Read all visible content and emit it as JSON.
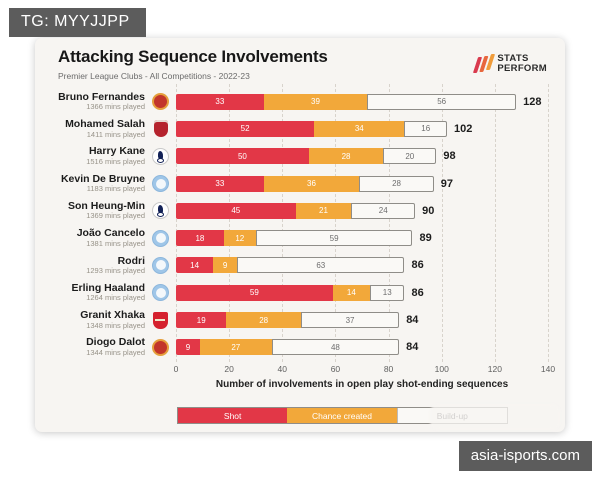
{
  "watermarks": {
    "top_left": "TG: MYYJJPP",
    "bottom_right": "asia-isports.com"
  },
  "header": {
    "title": "Attacking Sequence Involvements",
    "subtitle": "Premier League Clubs - All Competitions - 2022-23",
    "logo": {
      "line1": "STATS",
      "line2": "PERFORM"
    }
  },
  "colors": {
    "shot": "#e23747",
    "chance_created": "#f2a83a",
    "build_up": "#faf9f6",
    "card_background": "#f7f5f2"
  },
  "chart_data": {
    "type": "bar",
    "stacked": true,
    "orientation": "horizontal",
    "title": "Attacking Sequence Involvements",
    "subtitle": "Premier League Clubs - All Competitions - 2022-23",
    "xlabel": "Number of involvements in open play shot-ending sequences",
    "xlim": [
      0,
      140
    ],
    "x_ticks": [
      0,
      20,
      40,
      60,
      80,
      100,
      120,
      140
    ],
    "grid": "dashed-vertical",
    "legend": {
      "position": "bottom",
      "entries": [
        {
          "label": "Shot",
          "color": "#e23747"
        },
        {
          "label": "Chance created",
          "color": "#f2a83a"
        },
        {
          "label": "Build-up",
          "color": "#faf9f6"
        }
      ]
    },
    "series_keys": [
      "shot",
      "chance_created",
      "build_up"
    ],
    "players": [
      {
        "name": "Bruno Fernandes",
        "mins": "1366 mins played",
        "club": "manchester-united",
        "shot": 33,
        "chance_created": 39,
        "build_up": 56,
        "total": 128
      },
      {
        "name": "Mohamed Salah",
        "mins": "1411 mins played",
        "club": "liverpool",
        "shot": 52,
        "chance_created": 34,
        "build_up": 16,
        "total": 102
      },
      {
        "name": "Harry Kane",
        "mins": "1516 mins played",
        "club": "tottenham",
        "shot": 50,
        "chance_created": 28,
        "build_up": 20,
        "total": 98
      },
      {
        "name": "Kevin De Bruyne",
        "mins": "1183 mins played",
        "club": "manchester-city",
        "shot": 33,
        "chance_created": 36,
        "build_up": 28,
        "total": 97
      },
      {
        "name": "Son Heung-Min",
        "mins": "1369 mins played",
        "club": "tottenham",
        "shot": 45,
        "chance_created": 21,
        "build_up": 24,
        "total": 90
      },
      {
        "name": "João Cancelo",
        "mins": "1381 mins played",
        "club": "manchester-city",
        "shot": 18,
        "chance_created": 12,
        "build_up": 59,
        "total": 89
      },
      {
        "name": "Rodri",
        "mins": "1293 mins played",
        "club": "manchester-city",
        "shot": 14,
        "chance_created": 9,
        "build_up": 63,
        "total": 86
      },
      {
        "name": "Erling Haaland",
        "mins": "1264 mins played",
        "club": "manchester-city",
        "shot": 59,
        "chance_created": 14,
        "build_up": 13,
        "total": 86
      },
      {
        "name": "Granit Xhaka",
        "mins": "1348 mins played",
        "club": "arsenal",
        "shot": 19,
        "chance_created": 28,
        "build_up": 37,
        "total": 84
      },
      {
        "name": "Diogo Dalot",
        "mins": "1344 mins played",
        "club": "manchester-united",
        "shot": 9,
        "chance_created": 27,
        "build_up": 48,
        "total": 84
      }
    ]
  }
}
